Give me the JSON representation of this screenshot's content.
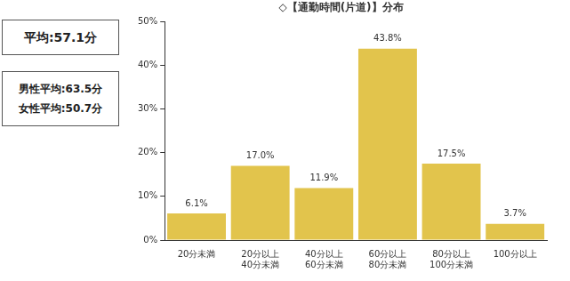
{
  "chart_data": {
    "type": "bar",
    "title": "◇【通勤時間(片道)】分布",
    "annotations": [
      [
        "平均:57.1分"
      ],
      [
        "男性平均:63.5分",
        "女性平均:50.7分"
      ]
    ],
    "categories": [
      [
        "20分未満"
      ],
      [
        "20分以上",
        "40分未満"
      ],
      [
        "40分以上",
        "60分未満"
      ],
      [
        "60分以上",
        "80分未満"
      ],
      [
        "80分以上",
        "100分未満"
      ],
      [
        "100分以上"
      ]
    ],
    "values": [
      6.1,
      17.0,
      11.9,
      43.8,
      17.5,
      3.7
    ],
    "value_labels": [
      "6.1%",
      "17.0%",
      "11.9%",
      "43.8%",
      "17.5%",
      "3.7%"
    ],
    "data_labels": true,
    "color": "#e2c44c",
    "ylim": [
      0,
      50
    ],
    "yticks": [
      {
        "value": 0,
        "label": "0%"
      },
      {
        "value": 10,
        "label": "10%"
      },
      {
        "value": 20,
        "label": "20%"
      },
      {
        "value": 30,
        "label": "30%"
      },
      {
        "value": 40,
        "label": "40%"
      },
      {
        "value": 50,
        "label": "50%"
      }
    ],
    "grid": false
  }
}
